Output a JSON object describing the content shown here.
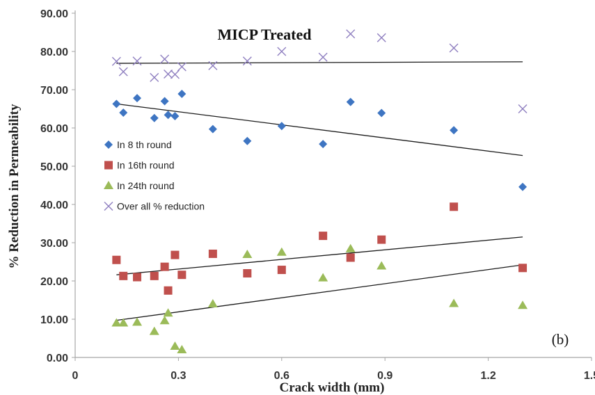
{
  "chart_data": {
    "type": "scatter",
    "title": "MICP Treated",
    "xlabel": "Crack width  (mm)",
    "ylabel": "% Reduction in Permeability",
    "panel_label": "(b)",
    "xlim": [
      0,
      1.5
    ],
    "ylim": [
      0,
      90
    ],
    "x_ticks": [
      0,
      0.3,
      0.6,
      0.9,
      1.2,
      1.5
    ],
    "x_tick_labels": [
      "0",
      "0.3",
      "0.6",
      "0.9",
      "1.2",
      "1.5"
    ],
    "y_ticks": [
      0,
      10,
      20,
      30,
      40,
      50,
      60,
      70,
      80,
      90
    ],
    "y_tick_labels": [
      "0.00",
      "10.00",
      "20.00",
      "30.00",
      "40.00",
      "50.00",
      "60.00",
      "70.00",
      "80.00",
      "90.00"
    ],
    "grid": false,
    "legend_position": "left-middle",
    "series": [
      {
        "name": "In 8 th round",
        "marker": "diamond",
        "color": "#3e75c2",
        "x": [
          0.12,
          0.14,
          0.18,
          0.23,
          0.26,
          0.27,
          0.29,
          0.31,
          0.4,
          0.5,
          0.6,
          0.72,
          0.8,
          0.89,
          1.1,
          1.3
        ],
        "y": [
          66.3,
          64.0,
          67.8,
          62.6,
          67.0,
          63.4,
          63.1,
          68.9,
          59.7,
          56.6,
          60.5,
          55.8,
          66.8,
          63.9,
          59.4,
          44.6
        ],
        "trendline": [
          [
            0.12,
            66.3
          ],
          [
            1.3,
            52.8
          ]
        ]
      },
      {
        "name": "In 16th round",
        "marker": "square",
        "color": "#c0504d",
        "x": [
          0.12,
          0.14,
          0.18,
          0.23,
          0.26,
          0.27,
          0.29,
          0.31,
          0.4,
          0.5,
          0.6,
          0.72,
          0.8,
          0.89,
          1.1,
          1.3
        ],
        "y": [
          25.5,
          21.3,
          21.0,
          21.3,
          23.7,
          17.5,
          26.8,
          21.6,
          27.1,
          22.0,
          22.9,
          31.8,
          26.1,
          30.8,
          39.4,
          23.4
        ],
        "trendline": [
          [
            0.12,
            21.6
          ],
          [
            1.3,
            31.5
          ]
        ]
      },
      {
        "name": "In 24th round",
        "marker": "triangle",
        "color": "#9bbb59",
        "x": [
          0.12,
          0.14,
          0.18,
          0.23,
          0.26,
          0.27,
          0.29,
          0.31,
          0.4,
          0.5,
          0.6,
          0.72,
          0.8,
          0.89,
          1.1,
          1.3
        ],
        "y": [
          9.0,
          9.0,
          9.2,
          6.8,
          9.6,
          11.6,
          2.9,
          2.0,
          14.0,
          26.9,
          27.5,
          20.8,
          28.4,
          23.9,
          14.1,
          13.6
        ],
        "trendline": [
          [
            0.12,
            9.7
          ],
          [
            1.3,
            24.2
          ]
        ]
      },
      {
        "name": "Over all % reduction",
        "marker": "x",
        "color": "#8f7fc0",
        "x": [
          0.12,
          0.14,
          0.18,
          0.23,
          0.26,
          0.27,
          0.29,
          0.31,
          0.4,
          0.5,
          0.6,
          0.72,
          0.8,
          0.89,
          1.1,
          1.3
        ],
        "y": [
          77.4,
          74.7,
          77.5,
          73.2,
          78.0,
          74.1,
          74.0,
          76.0,
          76.3,
          77.5,
          80.0,
          78.5,
          84.6,
          83.6,
          80.9,
          65.0
        ],
        "trendline": [
          [
            0.12,
            76.9
          ],
          [
            1.3,
            77.3
          ]
        ]
      }
    ]
  }
}
